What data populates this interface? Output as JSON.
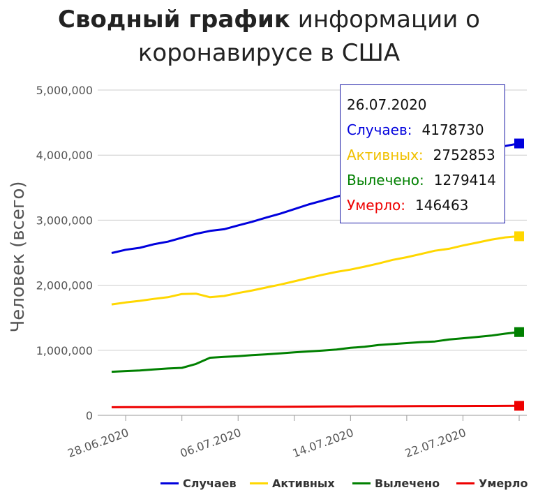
{
  "title": {
    "bold": "Сводный график",
    "rest": "информации о коронавирусе в США"
  },
  "chart_data": {
    "type": "line",
    "ylabel": "Человек (всего)",
    "ylim": [
      0,
      5000000
    ],
    "yticks": [
      "0",
      "1,000,000",
      "2,000,000",
      "3,000,000",
      "4,000,000",
      "5,000,000"
    ],
    "xticks": [
      "28.06.2020",
      "06.07.2020",
      "14.07.2020",
      "22.07.2020"
    ],
    "x": [
      "27.06.2020",
      "28.06.2020",
      "29.06.2020",
      "30.06.2020",
      "01.07.2020",
      "02.07.2020",
      "03.07.2020",
      "04.07.2020",
      "05.07.2020",
      "06.07.2020",
      "07.07.2020",
      "08.07.2020",
      "09.07.2020",
      "10.07.2020",
      "11.07.2020",
      "12.07.2020",
      "13.07.2020",
      "14.07.2020",
      "15.07.2020",
      "16.07.2020",
      "17.07.2020",
      "18.07.2020",
      "19.07.2020",
      "20.07.2020",
      "21.07.2020",
      "22.07.2020",
      "23.07.2020",
      "24.07.2020",
      "25.07.2020",
      "26.07.2020"
    ],
    "grid": true,
    "legend": "bottom",
    "series": [
      {
        "name": "Случаев",
        "color": "#0000dd",
        "values": [
          2495000,
          2545000,
          2575000,
          2630000,
          2670000,
          2730000,
          2790000,
          2835000,
          2860000,
          2920000,
          2975000,
          3040000,
          3100000,
          3170000,
          3240000,
          3300000,
          3360000,
          3420000,
          3490000,
          3560000,
          3630000,
          3700000,
          3770000,
          3840000,
          3900000,
          3960000,
          4030000,
          4090000,
          4140000,
          4178730
        ]
      },
      {
        "name": "Активных",
        "color": "#ffd700",
        "values": [
          1705000,
          1735000,
          1760000,
          1790000,
          1815000,
          1865000,
          1870000,
          1815000,
          1835000,
          1880000,
          1920000,
          1965000,
          2010000,
          2060000,
          2110000,
          2160000,
          2205000,
          2240000,
          2285000,
          2335000,
          2390000,
          2430000,
          2480000,
          2530000,
          2560000,
          2610000,
          2655000,
          2700000,
          2735000,
          2752853
        ]
      },
      {
        "name": "Вылечено",
        "color": "#008000",
        "values": [
          670000,
          680000,
          690000,
          705000,
          720000,
          730000,
          790000,
          885000,
          898000,
          910000,
          925000,
          938000,
          952000,
          968000,
          982000,
          996000,
          1012000,
          1038000,
          1055000,
          1080000,
          1096000,
          1110000,
          1125000,
          1135000,
          1165000,
          1185000,
          1205000,
          1225000,
          1255000,
          1279414
        ]
      },
      {
        "name": "Умерло",
        "color": "#ee0000",
        "values": [
          125000,
          125500,
          126000,
          126500,
          127000,
          127500,
          128000,
          128500,
          129000,
          129500,
          130000,
          131000,
          132000,
          133000,
          134000,
          135000,
          136000,
          137000,
          138000,
          139000,
          140000,
          141000,
          142000,
          143000,
          143500,
          144000,
          144500,
          145000,
          145800,
          146463
        ]
      }
    ]
  },
  "tooltip": {
    "date": "26.07.2020",
    "rows": [
      {
        "label": "Случаев:",
        "value": "4178730",
        "color": "#0000dd"
      },
      {
        "label": "Активных:",
        "value": "2752853",
        "color": "#f0c000"
      },
      {
        "label": "Вылечено:",
        "value": "1279414",
        "color": "#008000"
      },
      {
        "label": "Умерло:",
        "value": "146463",
        "color": "#ee0000"
      }
    ]
  },
  "legend": [
    {
      "label": "Случаев",
      "color": "#0000dd"
    },
    {
      "label": "Активных",
      "color": "#ffd700"
    },
    {
      "label": "Вылечено",
      "color": "#008000"
    },
    {
      "label": "Умерло",
      "color": "#ee0000"
    }
  ]
}
